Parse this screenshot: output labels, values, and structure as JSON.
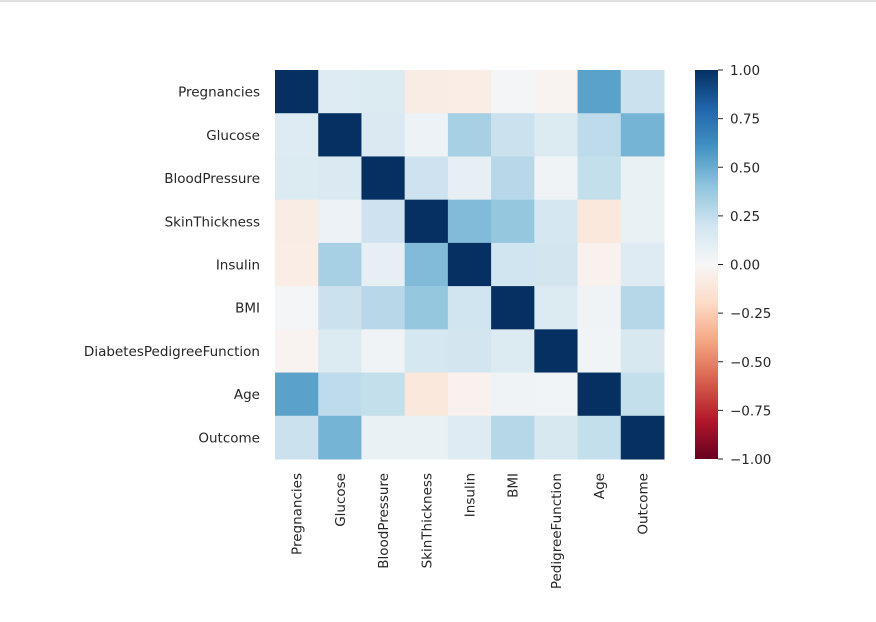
{
  "chart_data": {
    "type": "heatmap",
    "title": "",
    "xlabel": "",
    "ylabel": "",
    "row_labels": [
      "Pregnancies",
      "Glucose",
      "BloodPressure",
      "SkinThickness",
      "Insulin",
      "BMI",
      "DiabetesPedigreeFunction",
      "Age",
      "Outcome"
    ],
    "col_labels": [
      "Pregnancies",
      "Glucose",
      "BloodPressure",
      "SkinThickness",
      "Insulin",
      "BMI",
      "DiabetesPedigreeFunction",
      "Age",
      "Outcome"
    ],
    "values": [
      [
        1.0,
        0.13,
        0.14,
        -0.08,
        -0.07,
        0.02,
        -0.03,
        0.54,
        0.22
      ],
      [
        0.13,
        1.0,
        0.15,
        0.06,
        0.33,
        0.22,
        0.14,
        0.26,
        0.47
      ],
      [
        0.14,
        0.15,
        1.0,
        0.21,
        0.09,
        0.28,
        0.04,
        0.24,
        0.07
      ],
      [
        -0.08,
        0.06,
        0.21,
        1.0,
        0.44,
        0.39,
        0.18,
        -0.11,
        0.07
      ],
      [
        -0.07,
        0.33,
        0.09,
        0.44,
        1.0,
        0.2,
        0.19,
        -0.04,
        0.13
      ],
      [
        0.02,
        0.22,
        0.28,
        0.39,
        0.2,
        1.0,
        0.14,
        0.04,
        0.29
      ],
      [
        -0.03,
        0.14,
        0.04,
        0.18,
        0.19,
        0.14,
        1.0,
        0.03,
        0.17
      ],
      [
        0.54,
        0.26,
        0.24,
        -0.11,
        -0.04,
        0.04,
        0.03,
        1.0,
        0.24
      ],
      [
        0.22,
        0.47,
        0.07,
        0.07,
        0.13,
        0.29,
        0.17,
        0.24,
        1.0
      ]
    ],
    "colormap": "RdBu",
    "colormap_stops": [
      "#67001f",
      "#b2182b",
      "#d6604d",
      "#f4a582",
      "#fddbc7",
      "#f7f7f7",
      "#d1e5f0",
      "#92c5de",
      "#4393c3",
      "#2166ac",
      "#053061"
    ],
    "vlim": [
      -1,
      1
    ],
    "colorbar": {
      "ticks": [
        1.0,
        0.75,
        0.5,
        0.25,
        0.0,
        -0.25,
        -0.5,
        -0.75,
        -1.0
      ],
      "tick_labels": [
        "1.00",
        "0.75",
        "0.50",
        "0.25",
        "0.00",
        "−0.25",
        "−0.50",
        "−0.75",
        "−1.00"
      ],
      "placement": "right"
    }
  }
}
